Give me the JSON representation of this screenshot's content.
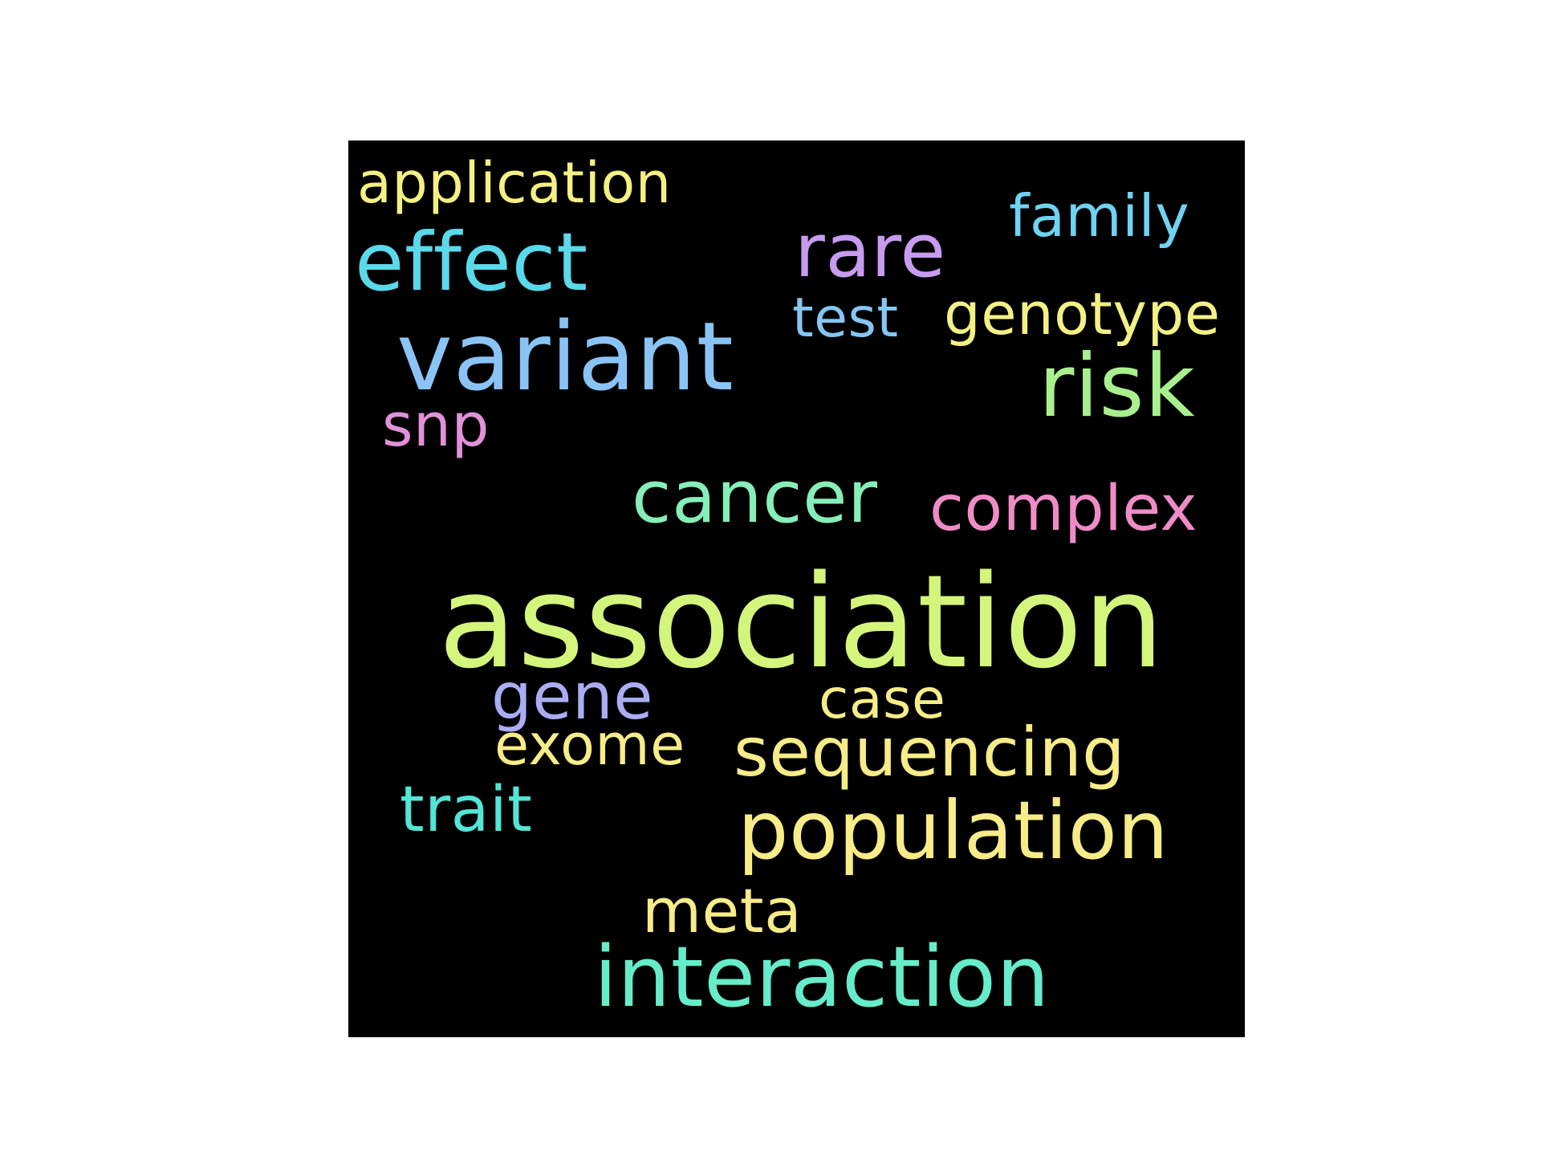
{
  "word_cloud": {
    "background": "#000000",
    "words": {
      "application": {
        "text": "application",
        "color": "#f5f082"
      },
      "family": {
        "text": "family",
        "color": "#6fd3f2"
      },
      "effect": {
        "text": "effect",
        "color": "#5ad9ea"
      },
      "rare": {
        "text": "rare",
        "color": "#c79cf0"
      },
      "test": {
        "text": "test",
        "color": "#86c6f4"
      },
      "genotype": {
        "text": "genotype",
        "color": "#f3f184"
      },
      "variant": {
        "text": "variant",
        "color": "#8ac4f6"
      },
      "risk": {
        "text": "risk",
        "color": "#a8f08e"
      },
      "snp": {
        "text": "snp",
        "color": "#e191d9"
      },
      "cancer": {
        "text": "cancer",
        "color": "#86efb8"
      },
      "complex": {
        "text": "complex",
        "color": "#ef8cc8"
      },
      "association": {
        "text": "association",
        "color": "#d3f57c"
      },
      "gene": {
        "text": "gene",
        "color": "#a9aef3"
      },
      "case": {
        "text": "case",
        "color": "#f7ec87"
      },
      "exome": {
        "text": "exome",
        "color": "#f7ec87"
      },
      "sequencing": {
        "text": "sequencing",
        "color": "#f7ec87"
      },
      "trait": {
        "text": "trait",
        "color": "#52e6d6"
      },
      "population": {
        "text": "population",
        "color": "#f7ec87"
      },
      "meta": {
        "text": "meta",
        "color": "#f7ec87"
      },
      "interaction": {
        "text": "interaction",
        "color": "#67eccb"
      }
    }
  }
}
